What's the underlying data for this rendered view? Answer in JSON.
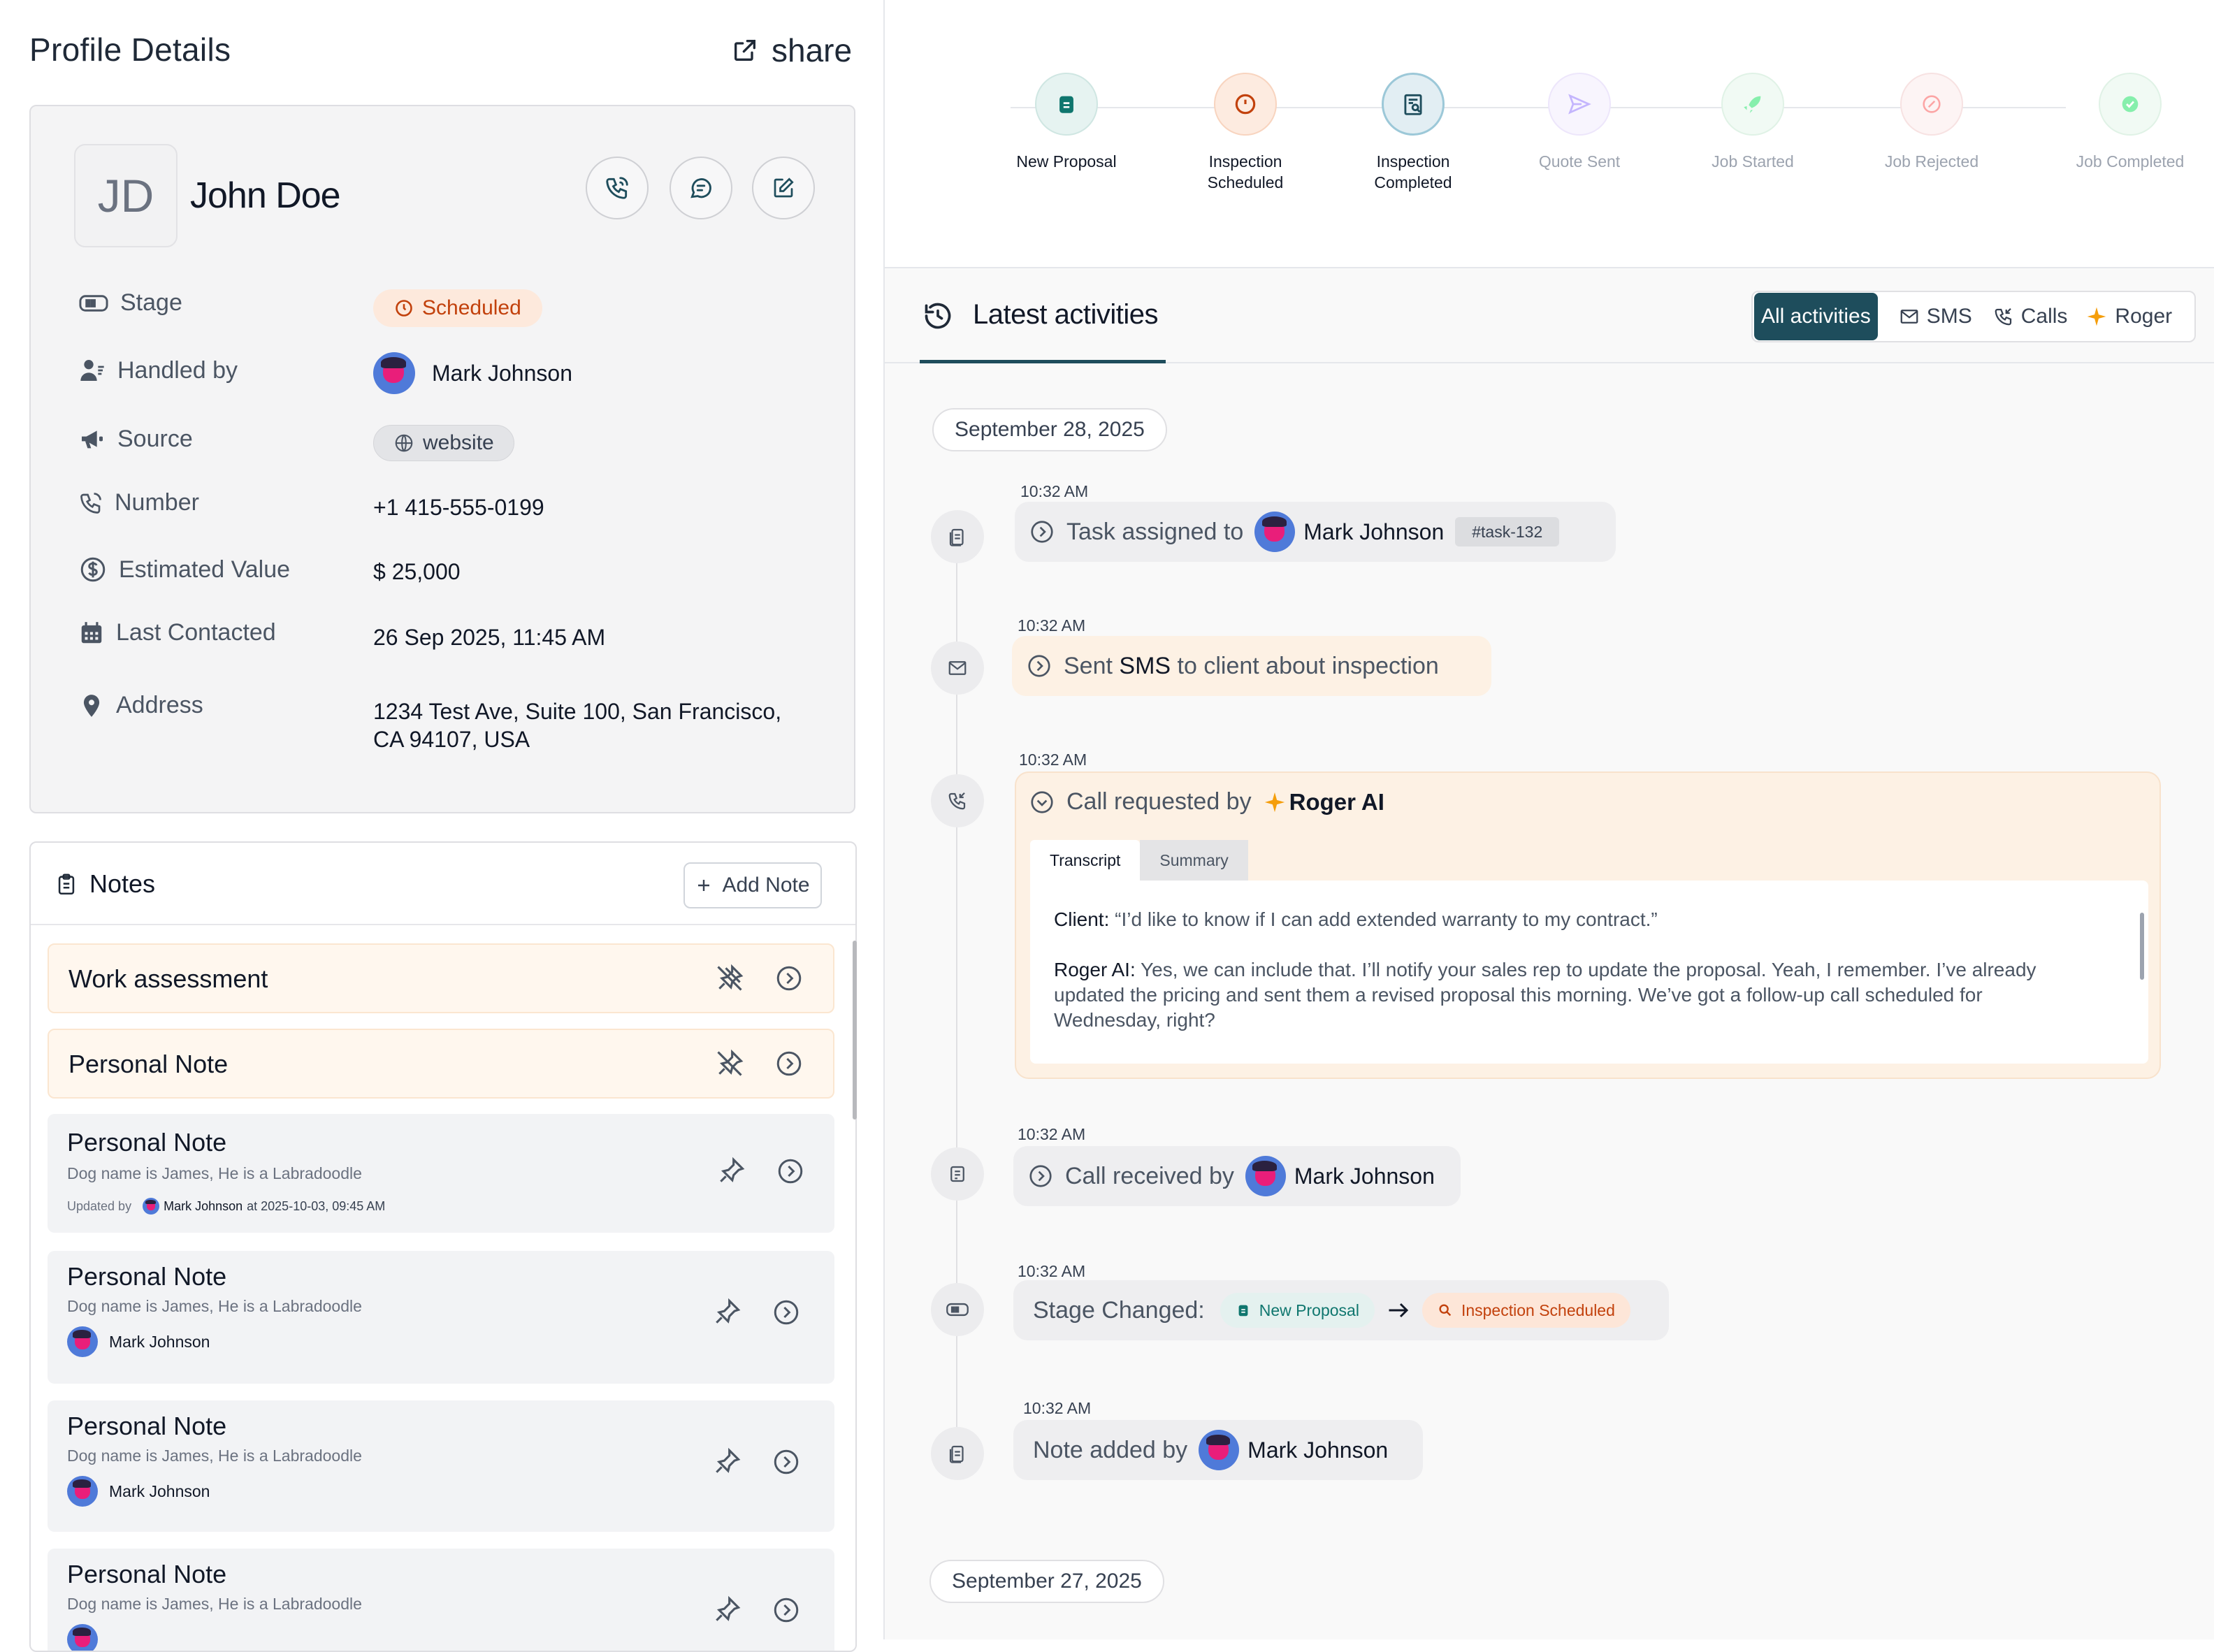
{
  "header": {
    "title": "Profile Details",
    "share_label": "share"
  },
  "profile": {
    "initials": "JD",
    "name": "John Doe",
    "fields": {
      "stage_label": "Stage",
      "stage_value": "Scheduled",
      "handled_label": "Handled by",
      "handled_value": "Mark Johnson",
      "source_label": "Source",
      "source_value": "website",
      "number_label": "Number",
      "number_value": "+1 415-555-0199",
      "value_label": "Estimated Value",
      "value_value": "$ 25,000",
      "contacted_label": "Last Contacted",
      "contacted_value": "26 Sep 2025, 11:45 AM",
      "address_label": "Address",
      "address_line1": "1234 Test Ave, Suite 100,  San Francisco,",
      "address_line2": "CA 94107,  USA"
    }
  },
  "notes": {
    "title": "Notes",
    "add_label": "Add Note",
    "items": [
      {
        "title": "Work assessment"
      },
      {
        "title": "Personal Note"
      },
      {
        "title": "Personal Note",
        "desc": "Dog name is James, He is a Labradoodle",
        "updated_by": "Updated by",
        "user": "Mark Johnson",
        "at": "at 2025-10-03, 09:45 AM"
      },
      {
        "title": "Personal Note",
        "desc": "Dog name is James, He is a Labradoodle",
        "user": "Mark Johnson"
      },
      {
        "title": "Personal Note",
        "desc": "Dog name is James, He is a Labradoodle",
        "user": "Mark Johnson"
      },
      {
        "title": "Personal Note",
        "desc": "Dog name is James, He is a Labradoodle"
      }
    ]
  },
  "pipeline": {
    "steps": [
      {
        "line1": "New Proposal",
        "line2": "",
        "color": "#0f766e"
      },
      {
        "line1": "Inspection",
        "line2": "Scheduled",
        "color": "#c2410c"
      },
      {
        "line1": "Inspection",
        "line2": "Completed",
        "color": "#1e4d5c"
      },
      {
        "line1": "Quote Sent",
        "line2": "",
        "color": "#c4b5fd"
      },
      {
        "line1": "Job Started",
        "line2": "",
        "color": "#86efac"
      },
      {
        "line1": "Job Rejected",
        "line2": "",
        "color": "#fca5a5"
      },
      {
        "line1": "Job Completed",
        "line2": "",
        "color": "#86efac"
      }
    ]
  },
  "activities": {
    "title": "Latest activities",
    "filters": {
      "all": "All activities",
      "sms": "SMS",
      "calls": "Calls",
      "roger": "Roger"
    },
    "date1": "September 28, 2025",
    "date2": "September 27, 2025",
    "items": {
      "task": {
        "time": "10:32 AM",
        "text": "Task assigned to",
        "user": "Mark Johnson",
        "tag": "#task-132"
      },
      "sms": {
        "time": "10:32 AM",
        "pre": "Sent",
        "bold": "SMS",
        "post": "to client about inspection"
      },
      "call": {
        "time": "10:32 AM",
        "text": "Call requested by",
        "agent": "Roger AI",
        "tab_transcript": "Transcript",
        "tab_summary": "Summary",
        "client_label": "Client:",
        "client_text": "“I’d like to know if I can add extended warranty to my contract.”",
        "roger_label": "Roger AI:",
        "roger_text": "Yes, we can include that. I’ll notify your sales rep to update the proposal. Yeah, I remember. I’ve already updated the pricing and sent them a revised proposal this morning. We’ve got a follow-up call scheduled for Wednesday, right?"
      },
      "received": {
        "time": "10:32 AM",
        "text": "Call received by",
        "user": "Mark Johnson"
      },
      "stage": {
        "time": "10:32 AM",
        "text": "Stage Changed:",
        "from": "New Proposal",
        "to": "Inspection Scheduled"
      },
      "note": {
        "time": "10:32 AM",
        "text": "Note added by",
        "user": "Mark Johnson"
      }
    }
  },
  "colors": {
    "accent": "#1e4d5c",
    "scheduled": "#c2410c",
    "proposal": "#0f766e"
  }
}
